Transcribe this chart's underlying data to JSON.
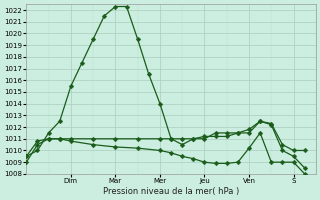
{
  "xlabel": "Pression niveau de la mer( hPa )",
  "bg_color": "#cceee0",
  "grid_major_color": "#aaccbb",
  "grid_minor_color": "#bbddcc",
  "line_color": "#1a5c1a",
  "ylim": [
    1008,
    1022.5
  ],
  "xlim": [
    0,
    13
  ],
  "day_labels": [
    "Dim",
    "Mar",
    "Mer",
    "Jeu",
    "Ven",
    "S"
  ],
  "day_positions": [
    2,
    4,
    6,
    8,
    10,
    12
  ],
  "series": [
    {
      "x": [
        0,
        0.5,
        1,
        1.5,
        2,
        2.5,
        3,
        3.5,
        4,
        4.5,
        5,
        5.5,
        6,
        6.5,
        7,
        7.5,
        8,
        8.5,
        9,
        9.5,
        10,
        10.5,
        11,
        11.5,
        12,
        12.5
      ],
      "y": [
        1009.5,
        1010.0,
        1011.5,
        1012.5,
        1015.5,
        1017.5,
        1019.5,
        1021.5,
        1022.3,
        1022.3,
        1019.5,
        1016.5,
        1014.0,
        1011.0,
        1010.5,
        1011.0,
        1011.0,
        1011.5,
        1011.5,
        1011.5,
        1011.5,
        1012.5,
        1012.3,
        1010.5,
        1010.0,
        1010.0
      ]
    },
    {
      "x": [
        0,
        0.5,
        1,
        1.5,
        2,
        3,
        4,
        5,
        6,
        6.5,
        7,
        7.5,
        8,
        8.5,
        9,
        9.5,
        10,
        10.5,
        11,
        11.5,
        12,
        12.5
      ],
      "y": [
        1009.0,
        1010.5,
        1011.0,
        1011.0,
        1011.0,
        1011.0,
        1011.0,
        1011.0,
        1011.0,
        1011.0,
        1011.0,
        1011.0,
        1011.2,
        1011.2,
        1011.2,
        1011.5,
        1011.8,
        1012.5,
        1012.2,
        1010.0,
        1009.5,
        1008.5
      ]
    },
    {
      "x": [
        0,
        0.5,
        1,
        1.5,
        2,
        3,
        4,
        5,
        6,
        6.5,
        7,
        7.5,
        8,
        8.5,
        9,
        9.5,
        10,
        10.5,
        11,
        11.5,
        12,
        12.5
      ],
      "y": [
        1009.5,
        1010.8,
        1011.0,
        1011.0,
        1010.8,
        1010.5,
        1010.3,
        1010.2,
        1010.0,
        1009.8,
        1009.5,
        1009.3,
        1009.0,
        1008.9,
        1008.9,
        1009.0,
        1010.2,
        1011.5,
        1009.0,
        1009.0,
        1009.0,
        1008.0
      ]
    }
  ],
  "marker": "D",
  "markersize": 2.5,
  "linewidth": 0.9
}
